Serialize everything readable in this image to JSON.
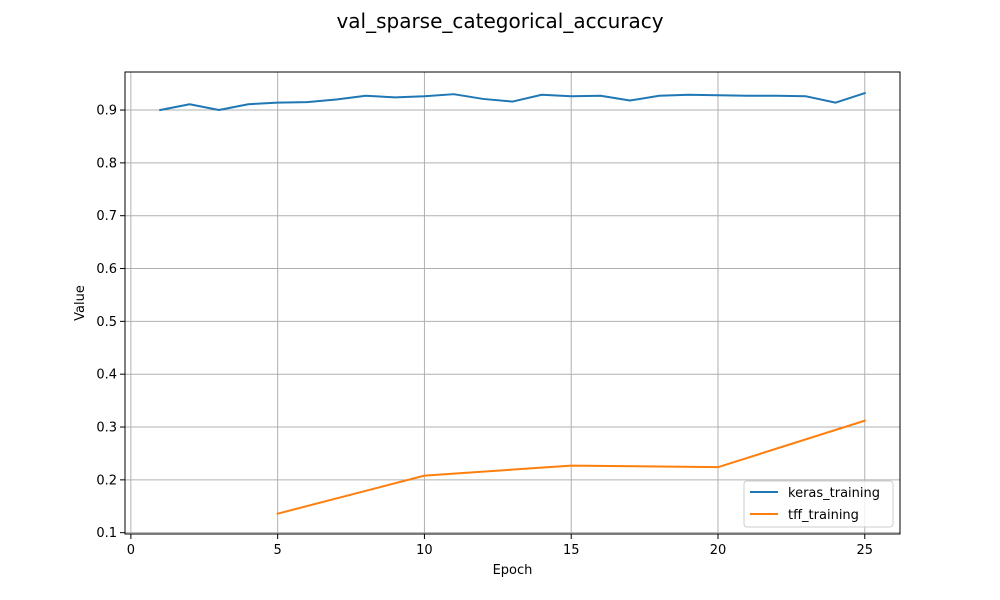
{
  "chart_data": {
    "type": "line",
    "title": "val_sparse_categorical_accuracy",
    "xlabel": "Epoch",
    "ylabel": "Value",
    "xlim": [
      -0.2,
      26.2
    ],
    "ylim": [
      0.0975,
      0.972
    ],
    "xticks": [
      "0",
      "5",
      "10",
      "15",
      "20",
      "25"
    ],
    "yticks": [
      "0.1",
      "0.2",
      "0.3",
      "0.4",
      "0.5",
      "0.6",
      "0.7",
      "0.8",
      "0.9"
    ],
    "grid": true,
    "legend_position": "bottom-right",
    "series": [
      {
        "name": "keras_training",
        "color": "#1f77b4",
        "x": [
          1,
          2,
          3,
          4,
          5,
          6,
          7,
          8,
          9,
          10,
          11,
          12,
          13,
          14,
          15,
          16,
          17,
          18,
          19,
          20,
          21,
          22,
          23,
          24,
          25
        ],
        "y": [
          0.9,
          0.911,
          0.9,
          0.911,
          0.914,
          0.915,
          0.92,
          0.927,
          0.924,
          0.926,
          0.93,
          0.921,
          0.916,
          0.929,
          0.926,
          0.927,
          0.918,
          0.927,
          0.929,
          0.928,
          0.927,
          0.927,
          0.926,
          0.914,
          0.932
        ]
      },
      {
        "name": "tff_training",
        "color": "#ff7f0e",
        "x": [
          5,
          10,
          15,
          20,
          25
        ],
        "y": [
          0.136,
          0.208,
          0.227,
          0.224,
          0.312
        ]
      }
    ]
  }
}
